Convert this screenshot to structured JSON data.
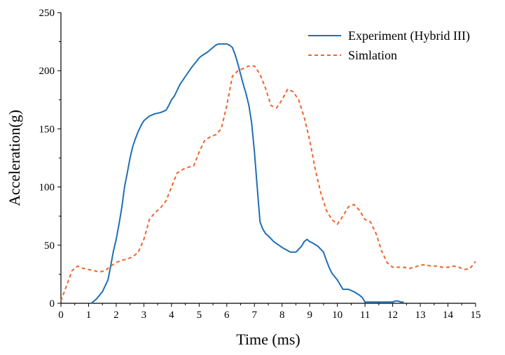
{
  "chart_data": {
    "type": "line",
    "xlabel": "Time (ms)",
    "ylabel": "Acceleration(g)",
    "xlim": [
      0,
      15
    ],
    "ylim": [
      0,
      250
    ],
    "xticks": [
      0,
      1,
      2,
      3,
      4,
      5,
      6,
      7,
      8,
      9,
      10,
      11,
      12,
      13,
      14,
      15
    ],
    "yticks": [
      0,
      50,
      100,
      150,
      200,
      250
    ],
    "grid": false,
    "legend_position": "top-right",
    "series": [
      {
        "name": "Experiment (Hybrid III)",
        "color": "#1f6fb5",
        "style": "solid",
        "x": [
          1.1,
          1.3,
          1.5,
          1.7,
          1.8,
          1.9,
          2.0,
          2.1,
          2.2,
          2.3,
          2.4,
          2.5,
          2.6,
          2.7,
          2.8,
          2.9,
          3.0,
          3.1,
          3.2,
          3.4,
          3.6,
          3.8,
          3.9,
          4.0,
          4.1,
          4.2,
          4.3,
          4.5,
          4.7,
          4.9,
          5.0,
          5.1,
          5.3,
          5.5,
          5.6,
          5.7,
          5.8,
          5.9,
          6.0,
          6.1,
          6.2,
          6.3,
          6.4,
          6.5,
          6.6,
          6.7,
          6.8,
          6.9,
          7.0,
          7.1,
          7.2,
          7.3,
          7.4,
          7.5,
          7.7,
          8.0,
          8.3,
          8.5,
          8.7,
          8.8,
          8.9,
          9.0,
          9.1,
          9.3,
          9.5,
          9.6,
          9.7,
          9.8,
          10.0,
          10.2,
          10.4,
          10.6,
          10.8,
          10.9,
          11.0,
          11.1,
          11.5,
          12.0,
          12.1,
          12.2,
          12.3,
          12.4
        ],
        "y": [
          0,
          4,
          10,
          20,
          32,
          45,
          55,
          68,
          82,
          100,
          112,
          125,
          135,
          142,
          148,
          153,
          157,
          159,
          161,
          163,
          164,
          166,
          170,
          175,
          178,
          183,
          188,
          195,
          202,
          208,
          211,
          213,
          216,
          220,
          222,
          223,
          223,
          223,
          223,
          222,
          220,
          214,
          206,
          197,
          188,
          180,
          170,
          155,
          130,
          100,
          70,
          64,
          60,
          58,
          53,
          48,
          44,
          44,
          49,
          53,
          55,
          53,
          52,
          49,
          44,
          37,
          31,
          26,
          20,
          12,
          12,
          10,
          7,
          5,
          1,
          1,
          1,
          1,
          2,
          2,
          1,
          1
        ]
      },
      {
        "name": "Simlation",
        "color": "#f0642c",
        "style": "dashed",
        "x": [
          0,
          0.2,
          0.4,
          0.6,
          0.8,
          1.0,
          1.2,
          1.4,
          1.6,
          1.8,
          2.0,
          2.2,
          2.4,
          2.6,
          2.8,
          3.0,
          3.2,
          3.4,
          3.6,
          3.8,
          4.0,
          4.2,
          4.4,
          4.6,
          4.8,
          5.0,
          5.2,
          5.4,
          5.6,
          5.8,
          6.0,
          6.2,
          6.4,
          6.6,
          6.8,
          7.0,
          7.2,
          7.4,
          7.6,
          7.8,
          8.0,
          8.2,
          8.4,
          8.6,
          8.8,
          9.0,
          9.2,
          9.4,
          9.6,
          9.8,
          10.0,
          10.2,
          10.4,
          10.6,
          10.8,
          11.0,
          11.2,
          11.4,
          11.6,
          11.8,
          12.0,
          12.2,
          12.4,
          12.6,
          12.8,
          13.0,
          13.2,
          13.4,
          13.6,
          13.8,
          14.0,
          14.2,
          14.4,
          14.6,
          14.8,
          15.0
        ],
        "y": [
          2,
          15,
          28,
          32,
          30,
          29,
          28,
          27,
          28,
          32,
          35,
          37,
          38,
          40,
          44,
          55,
          72,
          78,
          82,
          88,
          100,
          112,
          115,
          117,
          118,
          130,
          140,
          143,
          145,
          150,
          170,
          195,
          200,
          202,
          204,
          204,
          197,
          185,
          170,
          168,
          175,
          184,
          182,
          175,
          160,
          140,
          115,
          95,
          80,
          72,
          68,
          75,
          83,
          85,
          80,
          72,
          70,
          60,
          45,
          35,
          31,
          31,
          31,
          30,
          31,
          33,
          33,
          32,
          32,
          31,
          31,
          32,
          31,
          29,
          30,
          36
        ]
      }
    ]
  }
}
